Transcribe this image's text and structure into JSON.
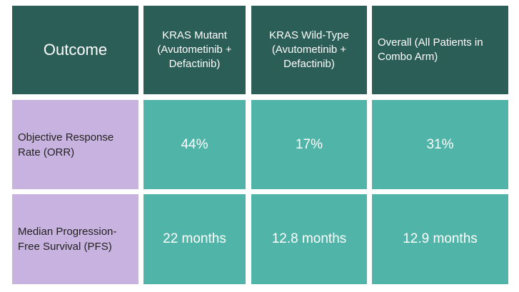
{
  "table": {
    "header": [
      "Outcome",
      "KRAS Mutant (Avutometinib + Defactinib)",
      "KRAS Wild-Type (Avutometinib + Defactinib)",
      "Overall (All Patients in Combo Arm)"
    ],
    "rows": [
      [
        "Objective Response Rate (ORR)",
        "44%",
        "17%",
        "31%"
      ],
      [
        "Median Progression-Free Survival (PFS)",
        "22 months",
        "12.8 months",
        "12.9 months"
      ]
    ]
  }
}
